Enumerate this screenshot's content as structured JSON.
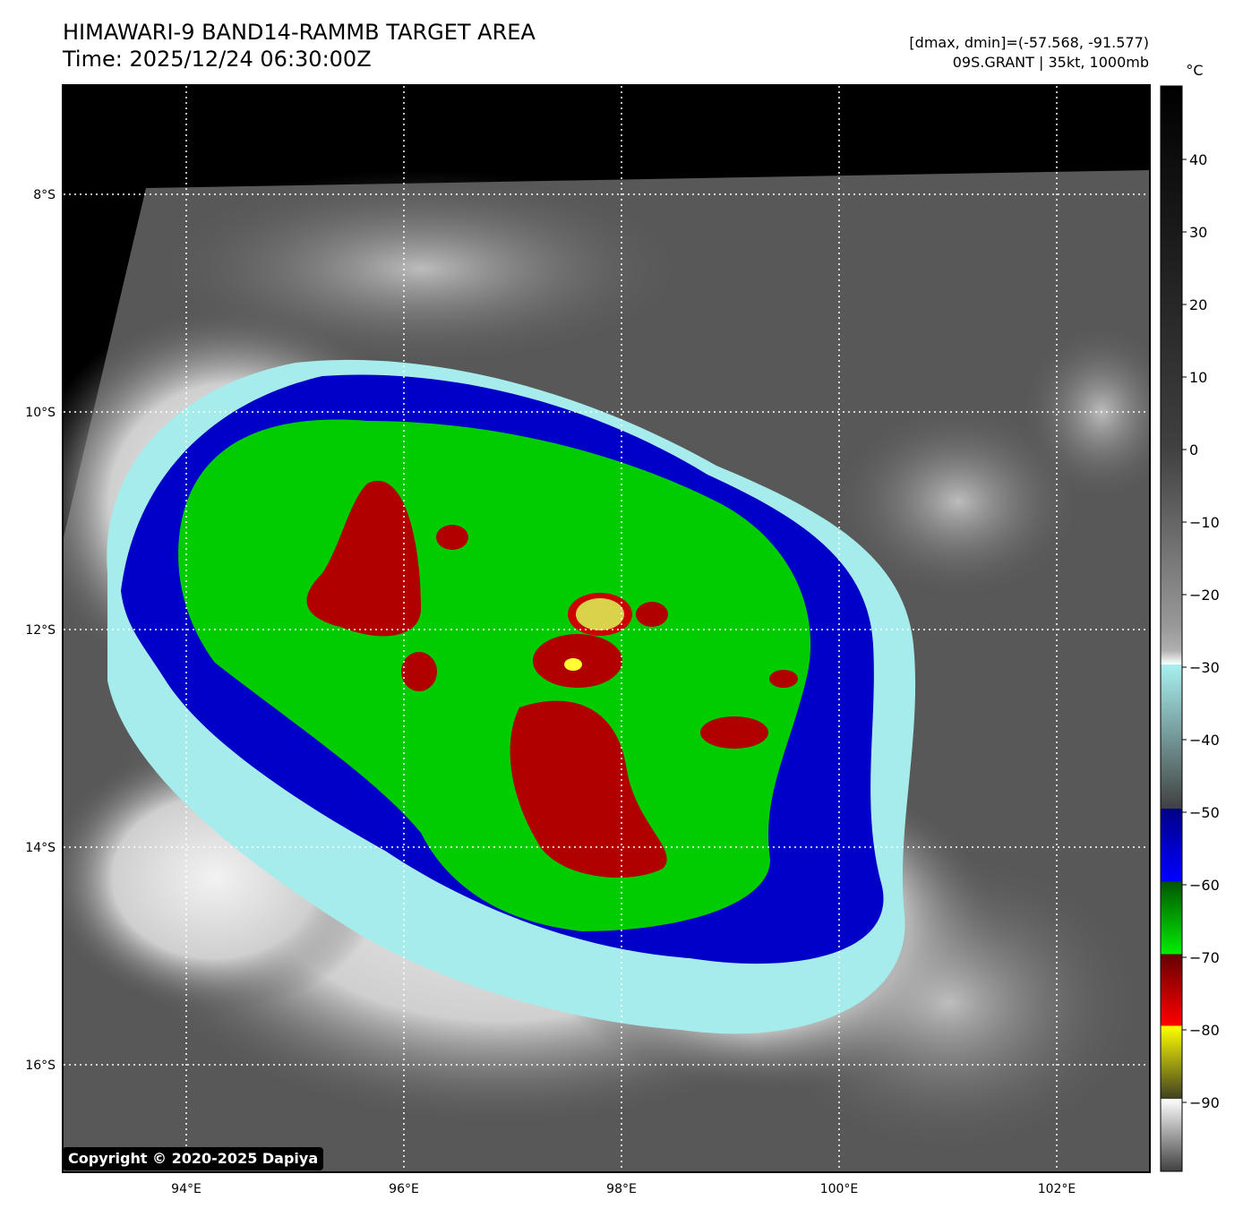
{
  "header": {
    "title_line1": "HIMAWARI-9 BAND14-RAMMB TARGET AREA",
    "title_line2": "Time: 2025/12/24 06:30:00Z",
    "info_line1": "[dmax, dmin]=(-57.568, -91.577)",
    "info_line2": "09S.GRANT | 35kt, 1000mb"
  },
  "map": {
    "lon_labels": [
      "94°E",
      "96°E",
      "98°E",
      "100°E",
      "102°E"
    ],
    "lat_labels": [
      "8°S",
      "10°S",
      "12°S",
      "14°S",
      "16°S"
    ],
    "grid": true
  },
  "colorbar": {
    "unit": "°C",
    "ticks": [
      "40",
      "30",
      "20",
      "10",
      "0",
      "−10",
      "−20",
      "−30",
      "−40",
      "−50",
      "−60",
      "−70",
      "−80",
      "−90"
    ]
  },
  "copyright": "Copyright © 2020-2025 Dapiya"
}
